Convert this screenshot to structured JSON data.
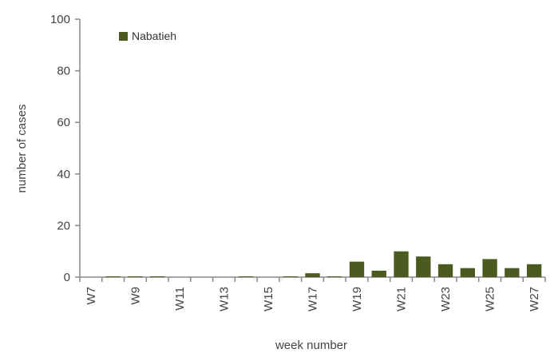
{
  "chart_data": {
    "type": "bar",
    "categories": [
      "W7",
      "W8",
      "W9",
      "W10",
      "W11",
      "W12",
      "W13",
      "W14",
      "W15",
      "W16",
      "W17",
      "W18",
      "W19",
      "W20",
      "W21",
      "W22",
      "W23",
      "W24",
      "W25",
      "W26",
      "W27"
    ],
    "tick_labels": [
      "W7",
      "W9",
      "W11",
      "W13",
      "W15",
      "W17",
      "W19",
      "W21",
      "W23",
      "W25",
      "W27"
    ],
    "series": [
      {
        "name": "Nabatieh",
        "color": "#4b5a1e",
        "values": [
          0,
          0.3,
          0.3,
          0.3,
          0,
          0,
          0,
          0.3,
          0,
          0.3,
          1.5,
          0.3,
          6,
          2.5,
          10,
          8,
          5,
          3.5,
          7,
          3.5,
          5
        ]
      }
    ],
    "xlabel": "week number",
    "ylabel": "number of cases",
    "ylim": [
      0,
      100
    ],
    "yticks": [
      0,
      20,
      40,
      60,
      80,
      100
    ],
    "grid": false,
    "legend": "top-left"
  }
}
